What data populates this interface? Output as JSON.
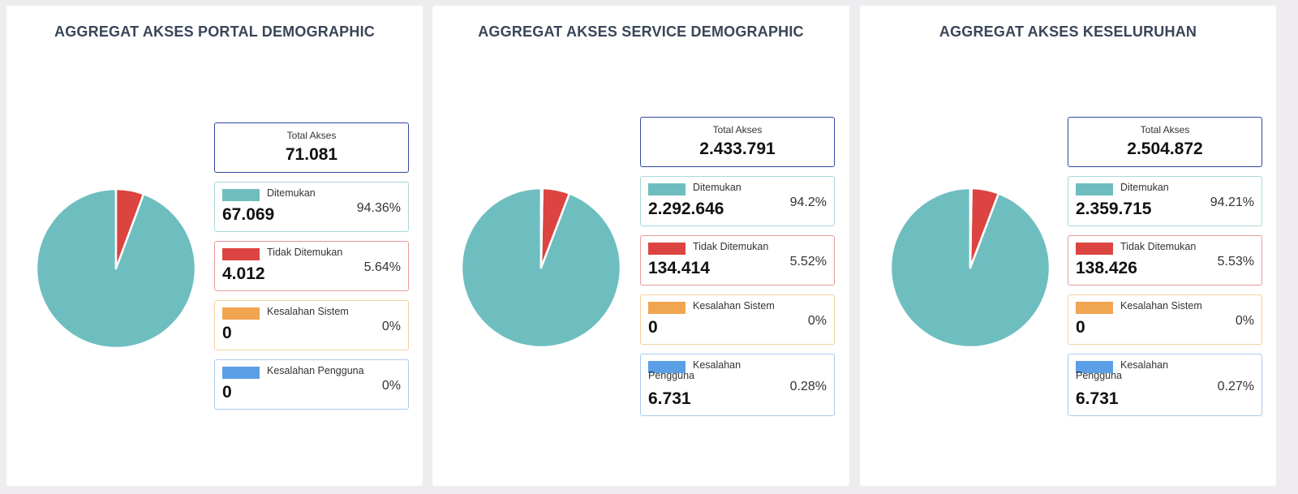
{
  "colors": {
    "ditemukan": "#6ebec0",
    "tidak_ditemukan": "#db4440",
    "kesalahan_sistem": "#f0a550",
    "kesalahan_pengguna": "#5b9fe6",
    "total_border": "#2e4a9e"
  },
  "panels": [
    {
      "title": "AGGREGAT AKSES PORTAL DEMOGRAPHIC",
      "total_label": "Total Akses",
      "total_value": "71.081",
      "items": [
        {
          "label": "Ditemukan",
          "value": "67.069",
          "pct": "94.36%"
        },
        {
          "label": "Tidak Ditemukan",
          "value": "4.012",
          "pct": "5.64%"
        },
        {
          "label": "Kesalahan Sistem",
          "value": "0",
          "pct": "0%"
        },
        {
          "label": "Kesalahan Pengguna",
          "value": "0",
          "pct": "0%"
        }
      ]
    },
    {
      "title": "AGGREGAT AKSES SERVICE DEMOGRAPHIC",
      "total_label": "Total Akses",
      "total_value": "2.433.791",
      "items": [
        {
          "label": "Ditemukan",
          "value": "2.292.646",
          "pct": "94.2%"
        },
        {
          "label": "Tidak Ditemukan",
          "value": "134.414",
          "pct": "5.52%"
        },
        {
          "label": "Kesalahan Sistem",
          "value": "0",
          "pct": "0%"
        },
        {
          "label": "Kesalahan Pengguna",
          "value": "6.731",
          "pct": "0.28%"
        }
      ]
    },
    {
      "title": "AGGREGAT AKSES KESELURUHAN",
      "total_label": "Total Akses",
      "total_value": "2.504.872",
      "items": [
        {
          "label": "Ditemukan",
          "value": "2.359.715",
          "pct": "94.21%"
        },
        {
          "label": "Tidak Ditemukan",
          "value": "138.426",
          "pct": "5.53%"
        },
        {
          "label": "Kesalahan Sistem",
          "value": "0",
          "pct": "0%"
        },
        {
          "label": "Kesalahan Pengguna",
          "value": "6.731",
          "pct": "0.27%"
        }
      ]
    }
  ],
  "chart_data": [
    {
      "type": "pie",
      "title": "AGGREGAT AKSES PORTAL DEMOGRAPHIC",
      "categories": [
        "Ditemukan",
        "Tidak Ditemukan",
        "Kesalahan Sistem",
        "Kesalahan Pengguna"
      ],
      "values": [
        67069,
        4012,
        0,
        0
      ]
    },
    {
      "type": "pie",
      "title": "AGGREGAT AKSES SERVICE DEMOGRAPHIC",
      "categories": [
        "Ditemukan",
        "Tidak Ditemukan",
        "Kesalahan Sistem",
        "Kesalahan Pengguna"
      ],
      "values": [
        2292646,
        134414,
        0,
        6731
      ]
    },
    {
      "type": "pie",
      "title": "AGGREGAT AKSES KESELURUHAN",
      "categories": [
        "Ditemukan",
        "Tidak Ditemukan",
        "Kesalahan Sistem",
        "Kesalahan Pengguna"
      ],
      "values": [
        2359715,
        138426,
        0,
        6731
      ]
    }
  ]
}
